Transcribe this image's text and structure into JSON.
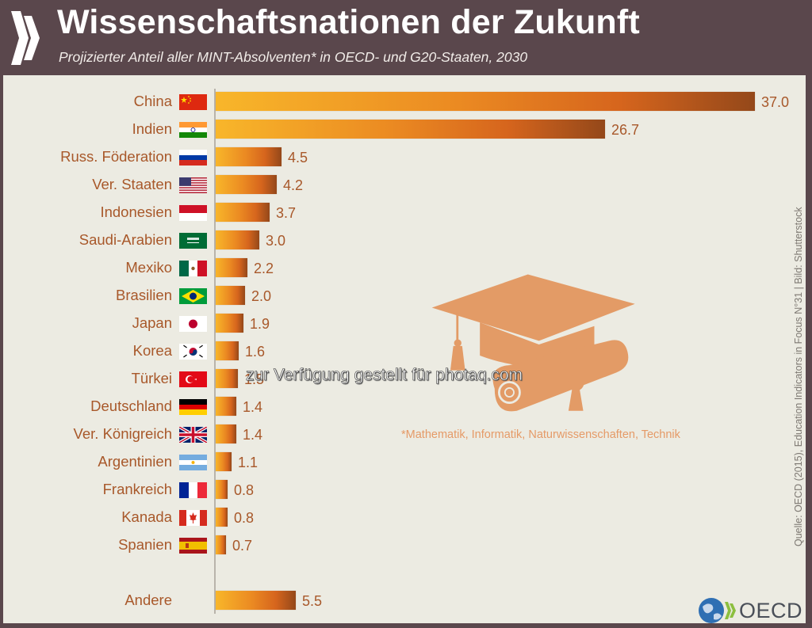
{
  "header": {
    "title": "Wissenschaftsnationen der Zukunft",
    "subtitle": "Projizierter Anteil aller MINT-Absolventen* in OECD- und G20-Staaten, 2030"
  },
  "footnote": "*Mathematik, Informatik, Naturwissenschaften, Technik",
  "source": "Quelle: OECD (2015), Education Indicators in Focus N°31 | Bild: Shutterstock",
  "watermark": "zur Verfügung gestellt für photaq.com",
  "logo": {
    "text": "OECD",
    "icon": "oecd-globe-chevrons-icon"
  },
  "colors": {
    "header_bg": "#5a474c",
    "panel_bg": "#ecebe2",
    "label_text": "#a8582a",
    "bar_gradient": [
      "#f8b62a",
      "#eb8a22",
      "#d6651d",
      "#94481a"
    ],
    "illustration": "#e39b66"
  },
  "chart_data": {
    "type": "bar",
    "orientation": "horizontal",
    "title": "Wissenschaftsnationen der Zukunft",
    "subtitle": "Projizierter Anteil aller MINT-Absolventen* in OECD- und G20-Staaten, 2030",
    "xlabel": "",
    "ylabel": "",
    "unit": "%",
    "grid": false,
    "legend": null,
    "categories": [
      "China",
      "Indien",
      "Russ. Föderation",
      "Ver. Staaten",
      "Indonesien",
      "Saudi-Arabien",
      "Mexiko",
      "Brasilien",
      "Japan",
      "Korea",
      "Türkei",
      "Deutschland",
      "Ver. Königreich",
      "Argentinien",
      "Frankreich",
      "Kanada",
      "Spanien",
      "Andere"
    ],
    "values": [
      37.0,
      26.7,
      4.5,
      4.2,
      3.7,
      3.0,
      2.2,
      2.0,
      1.9,
      1.6,
      1.5,
      1.4,
      1.4,
      1.1,
      0.8,
      0.8,
      0.7,
      5.5
    ],
    "xlim": [
      0,
      37.0
    ],
    "annotations": [
      "*Mathematik, Informatik, Naturwissenschaften, Technik"
    ]
  },
  "rows": [
    {
      "label": "China",
      "value": "37.0",
      "flag": "cn",
      "v": 37.0
    },
    {
      "label": "Indien",
      "value": "26.7",
      "flag": "in",
      "v": 26.7
    },
    {
      "label": "Russ. Föderation",
      "value": "4.5",
      "flag": "ru",
      "v": 4.5
    },
    {
      "label": "Ver. Staaten",
      "value": "4.2",
      "flag": "us",
      "v": 4.2
    },
    {
      "label": "Indonesien",
      "value": "3.7",
      "flag": "id",
      "v": 3.7
    },
    {
      "label": "Saudi-Arabien",
      "value": "3.0",
      "flag": "sa",
      "v": 3.0
    },
    {
      "label": "Mexiko",
      "value": "2.2",
      "flag": "mx",
      "v": 2.2
    },
    {
      "label": "Brasilien",
      "value": "2.0",
      "flag": "br",
      "v": 2.0
    },
    {
      "label": "Japan",
      "value": "1.9",
      "flag": "jp",
      "v": 1.9
    },
    {
      "label": "Korea",
      "value": "1.6",
      "flag": "kr",
      "v": 1.6
    },
    {
      "label": "Türkei",
      "value": "1.5",
      "flag": "tr",
      "v": 1.5
    },
    {
      "label": "Deutschland",
      "value": "1.4",
      "flag": "de",
      "v": 1.4
    },
    {
      "label": "Ver. Königreich",
      "value": "1.4",
      "flag": "gb",
      "v": 1.4
    },
    {
      "label": "Argentinien",
      "value": "1.1",
      "flag": "ar",
      "v": 1.1
    },
    {
      "label": "Frankreich",
      "value": "0.8",
      "flag": "fr",
      "v": 0.8
    },
    {
      "label": "Kanada",
      "value": "0.8",
      "flag": "ca",
      "v": 0.8
    },
    {
      "label": "Spanien",
      "value": "0.7",
      "flag": "es",
      "v": 0.7
    },
    {
      "label": "Andere",
      "value": "5.5",
      "flag": "",
      "v": 5.5
    }
  ]
}
